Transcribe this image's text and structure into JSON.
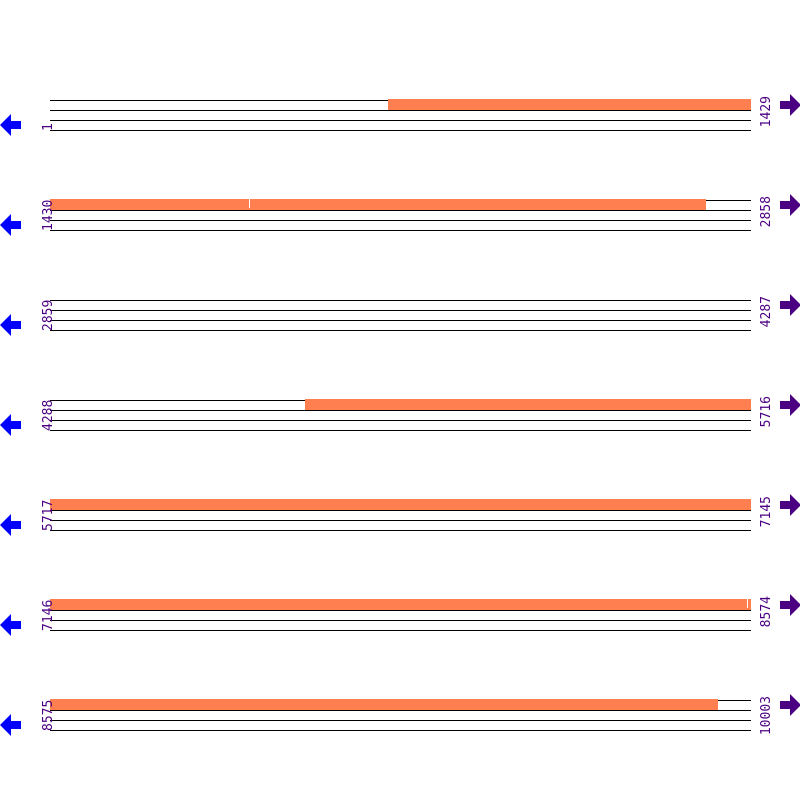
{
  "colors": {
    "feature": "#ff7f50",
    "left_arrow": "#0000ff",
    "right_arrow": "#4b0082",
    "line": "#000000"
  },
  "rows": [
    {
      "start": "1",
      "end": "1429",
      "features": [
        {
          "from": 0.482,
          "to": 1.0,
          "ticks": []
        }
      ]
    },
    {
      "start": "1430",
      "end": "2858",
      "features": [
        {
          "from": 0.0,
          "to": 0.936,
          "ticks": [
            0.284
          ]
        }
      ]
    },
    {
      "start": "2859",
      "end": "4287",
      "features": []
    },
    {
      "start": "4288",
      "end": "5716",
      "features": [
        {
          "from": 0.364,
          "to": 1.0,
          "ticks": []
        }
      ]
    },
    {
      "start": "5717",
      "end": "7145",
      "features": [
        {
          "from": 0.0,
          "to": 1.0,
          "ticks": []
        }
      ]
    },
    {
      "start": "7146",
      "end": "8574",
      "features": [
        {
          "from": 0.0,
          "to": 1.0,
          "ticks": [
            0.994
          ]
        }
      ]
    },
    {
      "start": "8575",
      "end": "10003",
      "features": [
        {
          "from": 0.0,
          "to": 0.953,
          "ticks": []
        }
      ]
    }
  ],
  "icons": {
    "left": "arrow-left-icon",
    "right": "arrow-right-icon"
  }
}
